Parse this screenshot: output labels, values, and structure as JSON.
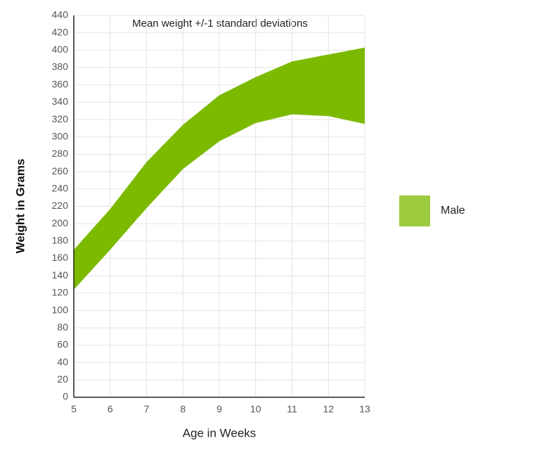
{
  "chart_data": {
    "type": "range-area",
    "title": "Mean weight +/-1 standard deviations",
    "x_label": "Age in Weeks",
    "y_label": "Weight in Grams",
    "x": [
      5,
      6,
      7,
      8,
      9,
      10,
      11,
      12,
      13
    ],
    "series": [
      {
        "name": "Male",
        "color": "#7cba00",
        "low": [
          124,
          170,
          218,
          263,
          295,
          316,
          326,
          324,
          315
        ],
        "high": [
          170,
          217,
          271,
          314,
          348,
          369,
          387,
          395,
          403
        ]
      }
    ],
    "xlim": [
      5,
      13
    ],
    "xticks": [
      5,
      6,
      7,
      8,
      9,
      10,
      11,
      12,
      13
    ],
    "ylim": [
      0,
      440
    ],
    "yticks": [
      0,
      20,
      40,
      60,
      80,
      100,
      120,
      140,
      160,
      180,
      200,
      220,
      240,
      260,
      280,
      300,
      320,
      340,
      360,
      380,
      400,
      420,
      440
    ],
    "grid": true,
    "legend": "right"
  }
}
